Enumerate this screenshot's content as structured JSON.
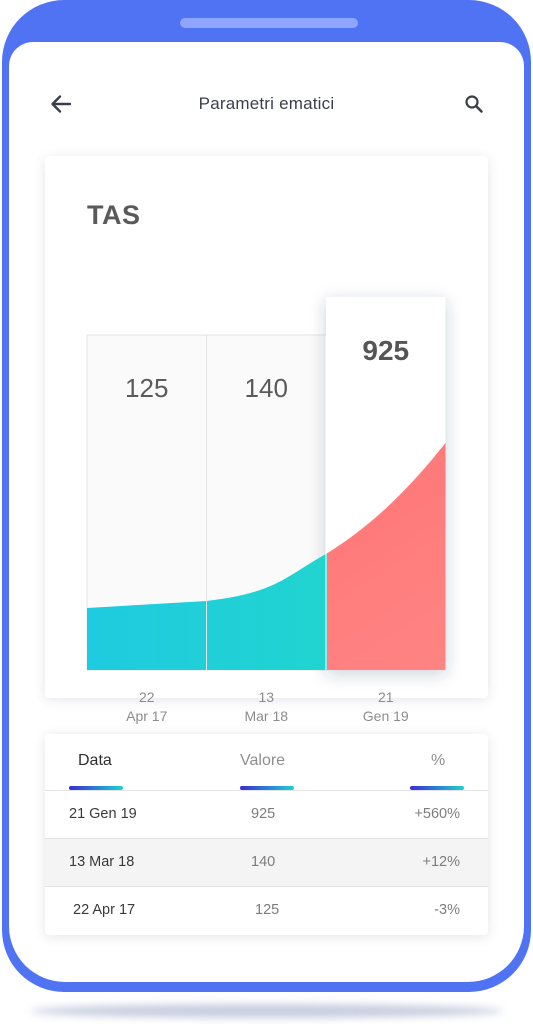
{
  "header": {
    "title": "Parametri ematici"
  },
  "chart_data": {
    "type": "area",
    "title": "TAS",
    "categories": [
      {
        "day": "22",
        "month": "Apr 17"
      },
      {
        "day": "13",
        "month": "Mar 18"
      },
      {
        "day": "21",
        "month": "Gen 19"
      }
    ],
    "values": [
      125,
      140,
      925
    ],
    "selected_index": 2,
    "colors": {
      "area_past": "#1fd6cd",
      "area_selected": "#ff7171"
    }
  },
  "table": {
    "headers": {
      "date": "Data",
      "value": "Valore",
      "percent": "%"
    },
    "active_header": "date",
    "rows": [
      {
        "date": "21 Gen 19",
        "value": "925",
        "percent": "+560%"
      },
      {
        "date": "13 Mar 18",
        "value": "140",
        "percent": "+12%"
      },
      {
        "date": "22 Apr 17",
        "value": "125",
        "percent": "-3%"
      }
    ]
  }
}
